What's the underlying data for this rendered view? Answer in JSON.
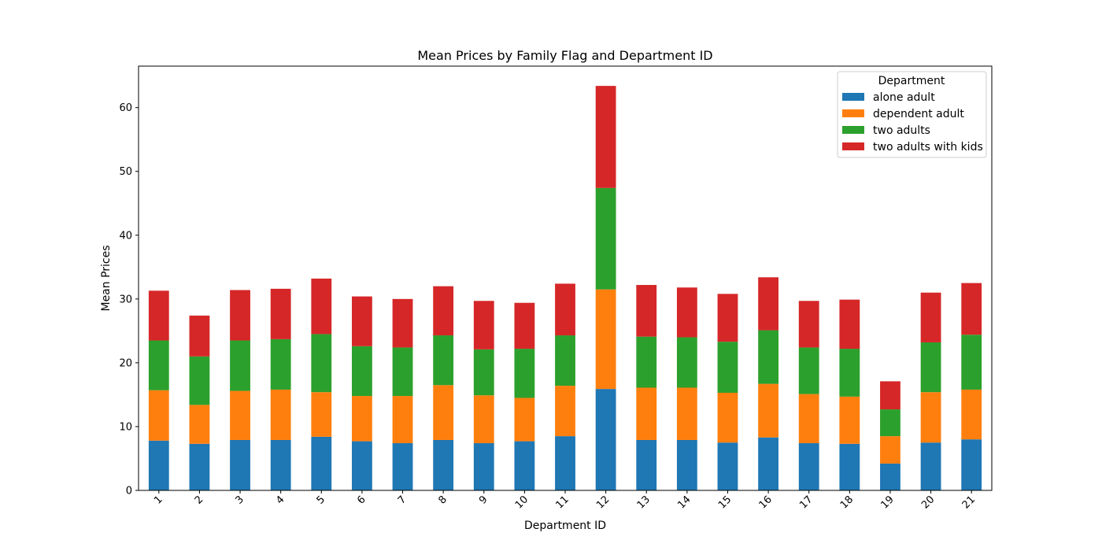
{
  "chart_data": {
    "type": "bar",
    "stacked": true,
    "title": "Mean Prices by Family Flag and Department ID",
    "xlabel": "Department ID",
    "ylabel": "Mean Prices",
    "ylim": [
      0,
      66.5
    ],
    "yticks": [
      0,
      10,
      20,
      30,
      40,
      50,
      60
    ],
    "grid": false,
    "legend": {
      "title": "Department",
      "placement": "top-right"
    },
    "categories": [
      "1",
      "2",
      "3",
      "4",
      "5",
      "6",
      "7",
      "8",
      "9",
      "10",
      "11",
      "12",
      "13",
      "14",
      "15",
      "16",
      "17",
      "18",
      "19",
      "20",
      "21"
    ],
    "series": [
      {
        "name": "alone adult",
        "color": "#1f77b4",
        "values": [
          7.8,
          7.3,
          7.9,
          7.9,
          8.4,
          7.7,
          7.4,
          7.9,
          7.4,
          7.7,
          8.5,
          15.9,
          7.9,
          7.9,
          7.5,
          8.3,
          7.4,
          7.3,
          4.2,
          7.5,
          8.0
        ]
      },
      {
        "name": "dependent adult",
        "color": "#ff7f0e",
        "values": [
          7.9,
          6.1,
          7.7,
          7.9,
          7.0,
          7.1,
          7.4,
          8.6,
          7.5,
          6.8,
          7.9,
          15.6,
          8.2,
          8.2,
          7.8,
          8.4,
          7.7,
          7.4,
          4.3,
          7.9,
          7.8
        ]
      },
      {
        "name": "two adults",
        "color": "#2ca02c",
        "values": [
          7.8,
          7.6,
          7.9,
          7.9,
          9.1,
          7.8,
          7.6,
          7.8,
          7.2,
          7.7,
          7.9,
          15.9,
          8.0,
          7.9,
          8.0,
          8.4,
          7.3,
          7.5,
          4.2,
          7.8,
          8.6
        ]
      },
      {
        "name": "two adults with kids",
        "color": "#d62728",
        "values": [
          7.8,
          6.4,
          7.9,
          7.9,
          8.7,
          7.8,
          7.6,
          7.7,
          7.6,
          7.2,
          8.1,
          16.0,
          8.1,
          7.8,
          7.5,
          8.3,
          7.3,
          7.7,
          4.4,
          7.8,
          8.1
        ]
      }
    ]
  }
}
